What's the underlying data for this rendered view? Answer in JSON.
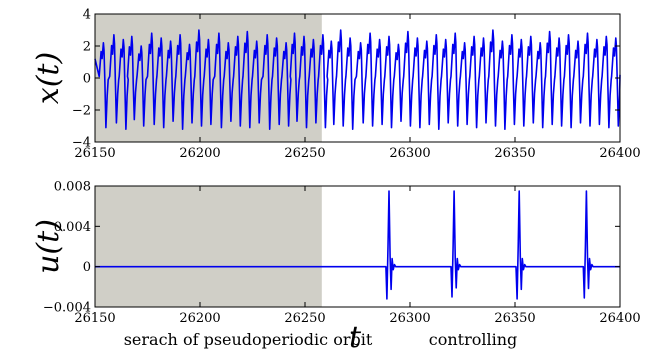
{
  "chart_data": [
    {
      "type": "line",
      "ylabel": "x(t)",
      "xlim": [
        26150,
        26400
      ],
      "ylim": [
        -4,
        4
      ],
      "xticks": [
        "26150",
        "26200",
        "26250",
        "26300",
        "26350",
        "26400"
      ],
      "yticks": [
        "4",
        "2",
        "0",
        "−2",
        "−4"
      ],
      "shaded_x": [
        26150,
        26258
      ],
      "series": [
        {
          "color": "#0000ee",
          "description": "chaotic pseudo-periodic oscillation",
          "peak_t": [
            26154,
            26159,
            26163.5,
            26167.5,
            26172,
            26177,
            26181.5,
            26186,
            26190.5,
            26195,
            26199.5,
            26204,
            26209,
            26213.5,
            26218,
            26222.5,
            26227,
            26232,
            26236.5,
            26241,
            26245,
            26249.5,
            26254,
            26258.5,
            26262.5,
            26267,
            26271.5,
            26276.5,
            26281,
            26285.5,
            26290,
            26294.5,
            26299,
            26303.5,
            26308,
            26312.5,
            26317,
            26321.5,
            26326,
            26330.5,
            26335,
            26339.5,
            26344,
            26348.5,
            26353,
            26357.5,
            26362,
            26366.5,
            26371,
            26375.5,
            26380,
            26384.5,
            26389,
            26393.5,
            26398
          ],
          "peak_values": [
            2.2,
            2.7,
            2.4,
            2.6,
            2.0,
            2.8,
            2.5,
            2.3,
            2.7,
            2.1,
            3.0,
            2.4,
            2.8,
            2.2,
            2.6,
            2.9,
            2.3,
            2.7,
            2.5,
            2.2,
            2.8,
            2.6,
            2.4,
            2.7,
            2.3,
            3.0,
            2.5,
            2.2,
            2.8,
            2.4,
            2.6,
            2.1,
            2.9,
            2.5,
            2.3,
            2.7,
            2.4,
            2.8,
            2.2,
            2.6,
            2.5,
            3.0,
            2.3,
            2.7,
            2.4,
            2.6,
            2.2,
            2.9,
            2.5,
            2.7,
            2.3,
            2.8,
            2.4,
            2.6,
            2.5
          ],
          "trough_values": [
            -3.1,
            -2.8,
            -3.2,
            -2.6,
            -3.0,
            -2.9,
            -3.1,
            -2.7,
            -3.2,
            -2.8,
            -3.0,
            -2.9,
            -3.1,
            -2.7,
            -3.0,
            -3.1,
            -2.8,
            -3.2,
            -2.9,
            -3.0,
            -2.7,
            -3.1,
            -2.8,
            -3.1,
            -2.9,
            -3.0,
            -3.2,
            -2.8,
            -3.0,
            -2.9,
            -3.1,
            -2.7,
            -3.0,
            -3.1,
            -2.9,
            -3.2,
            -2.8,
            -3.0,
            -2.9,
            -3.1,
            -2.8,
            -3.0,
            -3.2,
            -2.9,
            -3.0,
            -2.8,
            -3.1,
            -2.9,
            -3.0,
            -3.1,
            -2.8,
            -3.0,
            -2.9,
            -3.1,
            -3.0
          ]
        }
      ]
    },
    {
      "type": "line",
      "ylabel": "u(t)",
      "xlabel": "t",
      "xlim": [
        26150,
        26400
      ],
      "ylim": [
        -0.004,
        0.008
      ],
      "xticks": [
        "26150",
        "26200",
        "26250",
        "26300",
        "26350",
        "26400"
      ],
      "yticks": [
        "0.008",
        "0.004",
        "0",
        "−0.004"
      ],
      "shaded_x": [
        26150,
        26258
      ],
      "series": [
        {
          "color": "#0000ee",
          "baseline": 0,
          "pulses": [
            {
              "t": 26290,
              "peak": 0.0075,
              "trough": -0.0032
            },
            {
              "t": 26321,
              "peak": 0.0075,
              "trough": -0.003
            },
            {
              "t": 26352,
              "peak": 0.0075,
              "trough": -0.0032
            },
            {
              "t": 26384,
              "peak": 0.0075,
              "trough": -0.0031
            }
          ]
        }
      ]
    }
  ],
  "annotations": {
    "left": "serach of pseudoperiodic orbit",
    "right": "controlling",
    "t_symbol": "t"
  }
}
